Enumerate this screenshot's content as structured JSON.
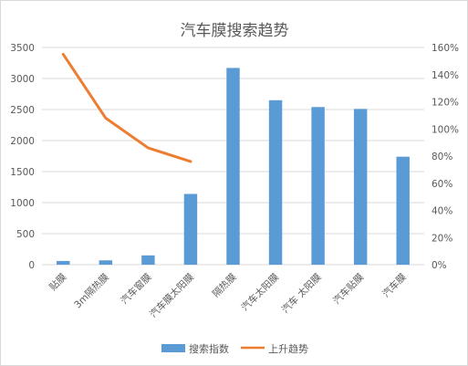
{
  "chart_data": {
    "type": "bar",
    "title": "汽车膜搜索趋势",
    "categories": [
      "贴膜",
      "3m隔热膜",
      "汽车窗膜",
      "汽车膜太阳膜",
      "隔热膜",
      "汽车太阳膜",
      "汽车 太阳膜",
      "汽车贴膜",
      "汽车膜"
    ],
    "series": [
      {
        "name": "搜索指数",
        "kind": "bar",
        "axis": "left",
        "color": "#5b9bd5",
        "values": [
          60,
          70,
          150,
          1140,
          3170,
          2650,
          2540,
          2510,
          1740
        ]
      },
      {
        "name": "上升趋势",
        "kind": "line",
        "axis": "right",
        "color": "#ed7d31",
        "values": [
          1.55,
          1.08,
          0.86,
          0.76,
          null,
          null,
          null,
          null,
          null
        ]
      }
    ],
    "ylim": [
      0,
      3500
    ],
    "yticks": [
      "0",
      "500",
      "1000",
      "1500",
      "2000",
      "2500",
      "3000",
      "3500"
    ],
    "y2lim": [
      0,
      1.6
    ],
    "y2ticks": [
      "0%",
      "20%",
      "40%",
      "60%",
      "80%",
      "100%",
      "120%",
      "140%",
      "160%"
    ],
    "grid": true,
    "legend": "bottom"
  }
}
